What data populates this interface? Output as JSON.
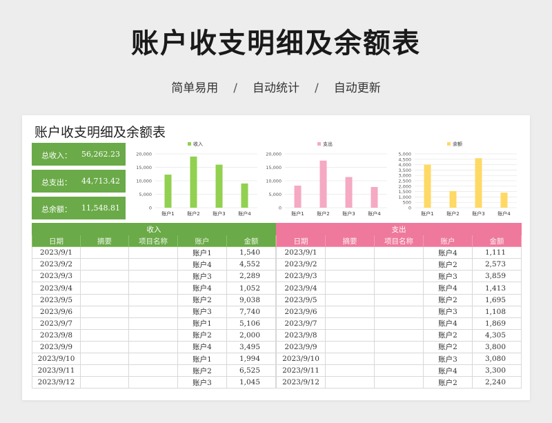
{
  "page": {
    "title": "账户收支明细及余额表",
    "subtitle": [
      "简单易用",
      "自动统计",
      "自动更新"
    ],
    "separator": "/"
  },
  "sheet": {
    "title": "账户收支明细及余额表",
    "summary": [
      {
        "label": "总收入：",
        "value": "56,262.23"
      },
      {
        "label": "总支出：",
        "value": "44,713.42"
      },
      {
        "label": "总余额：",
        "value": "11,548.81"
      }
    ]
  },
  "chart_data": [
    {
      "type": "bar",
      "categories": [
        "账户1",
        "账户2",
        "账户3",
        "账户4"
      ],
      "series": [
        {
          "name": "收入",
          "values": [
            12300,
            19000,
            16000,
            9000
          ]
        }
      ],
      "yticks": [
        "0",
        "5,000",
        "10,000",
        "15,000",
        "20,000"
      ],
      "ylim": [
        0,
        20000
      ],
      "color": "#92d050",
      "legend": "top"
    },
    {
      "type": "bar",
      "categories": [
        "账户1",
        "账户2",
        "账户3",
        "账户4"
      ],
      "series": [
        {
          "name": "支出",
          "values": [
            8200,
            17500,
            11400,
            7700
          ]
        }
      ],
      "yticks": [
        "0",
        "5,000",
        "10,000",
        "15,000",
        "20,000"
      ],
      "ylim": [
        0,
        20000
      ],
      "color": "#f5a9c3",
      "legend": "top"
    },
    {
      "type": "bar",
      "categories": [
        "账户1",
        "账户2",
        "账户3",
        "账户4"
      ],
      "series": [
        {
          "name": "余额",
          "values": [
            4000,
            1550,
            4600,
            1400
          ]
        }
      ],
      "yticks": [
        "0",
        "500",
        "1,000",
        "1,500",
        "2,000",
        "2,500",
        "3,000",
        "3,500",
        "4,000",
        "4,500",
        "5,000"
      ],
      "ylim": [
        0,
        5000
      ],
      "color": "#ffd966",
      "legend": "top"
    }
  ],
  "income": {
    "header": "收入",
    "columns": [
      "日期",
      "摘要",
      "项目名称",
      "账户",
      "金额"
    ],
    "rows": [
      [
        "2023/9/1",
        "",
        "",
        "账户1",
        "1,540"
      ],
      [
        "2023/9/2",
        "",
        "",
        "账户4",
        "4,552"
      ],
      [
        "2023/9/3",
        "",
        "",
        "账户3",
        "2,289"
      ],
      [
        "2023/9/4",
        "",
        "",
        "账户4",
        "1,052"
      ],
      [
        "2023/9/5",
        "",
        "",
        "账户2",
        "9,038"
      ],
      [
        "2023/9/6",
        "",
        "",
        "账户3",
        "7,740"
      ],
      [
        "2023/9/7",
        "",
        "",
        "账户1",
        "5,106"
      ],
      [
        "2023/9/8",
        "",
        "",
        "账户2",
        "2,000"
      ],
      [
        "2023/9/9",
        "",
        "",
        "账户4",
        "3,495"
      ],
      [
        "2023/9/10",
        "",
        "",
        "账户1",
        "1,994"
      ],
      [
        "2023/9/11",
        "",
        "",
        "账户2",
        "6,525"
      ],
      [
        "2023/9/12",
        "",
        "",
        "账户3",
        "1,045"
      ]
    ]
  },
  "expense": {
    "header": "支出",
    "columns": [
      "日期",
      "摘要",
      "项目名称",
      "账户",
      "金额"
    ],
    "rows": [
      [
        "2023/9/1",
        "",
        "",
        "账户4",
        "1,111"
      ],
      [
        "2023/9/2",
        "",
        "",
        "账户2",
        "2,573"
      ],
      [
        "2023/9/3",
        "",
        "",
        "账户3",
        "3,859"
      ],
      [
        "2023/9/4",
        "",
        "",
        "账户4",
        "1,413"
      ],
      [
        "2023/9/5",
        "",
        "",
        "账户2",
        "1,695"
      ],
      [
        "2023/9/6",
        "",
        "",
        "账户3",
        "1,108"
      ],
      [
        "2023/9/7",
        "",
        "",
        "账户4",
        "1,869"
      ],
      [
        "2023/9/8",
        "",
        "",
        "账户2",
        "4,305"
      ],
      [
        "2023/9/9",
        "",
        "",
        "账户2",
        "3,800"
      ],
      [
        "2023/9/10",
        "",
        "",
        "账户3",
        "3,080"
      ],
      [
        "2023/9/11",
        "",
        "",
        "账户4",
        "3,300"
      ],
      [
        "2023/9/12",
        "",
        "",
        "账户2",
        "2,240"
      ]
    ]
  }
}
